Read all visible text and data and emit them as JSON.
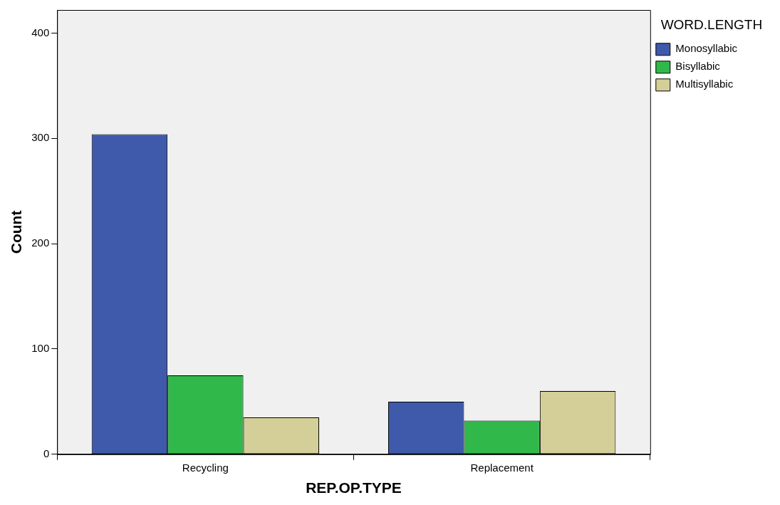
{
  "chart_data": {
    "type": "bar",
    "xlabel": "REP.OP.TYPE",
    "ylabel": "Count",
    "legend_title": "WORD.LENGTH",
    "legend": "top right",
    "categories": [
      "Recycling",
      "Replacement"
    ],
    "series": [
      {
        "name": "Monosyllabic",
        "color": "#3f59ab",
        "values": [
          304,
          50
        ]
      },
      {
        "name": "Bisyllabic",
        "color": "#31b84a",
        "values": [
          75,
          32
        ]
      },
      {
        "name": "Multisyllabic",
        "color": "#d4cf98",
        "values": [
          35,
          60
        ]
      }
    ],
    "ylim": [
      0,
      422
    ],
    "yticks": [
      0,
      100,
      200,
      300,
      400
    ],
    "grid": false
  }
}
